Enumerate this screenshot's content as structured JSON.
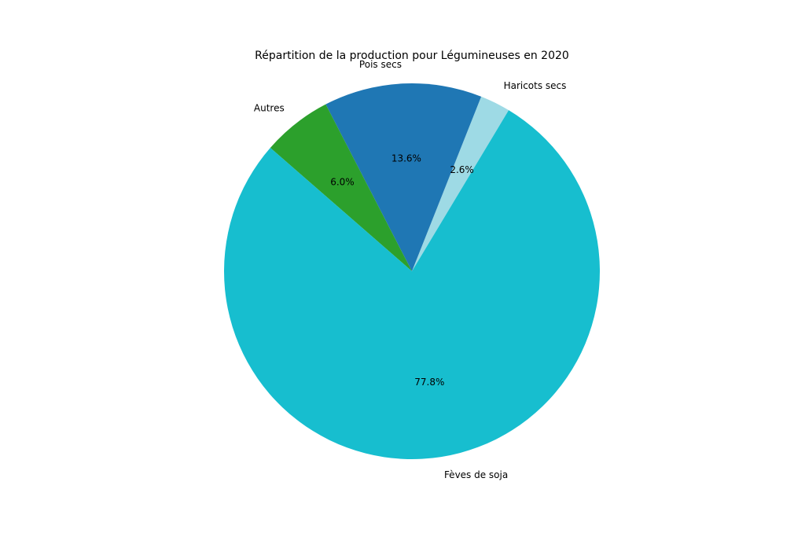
{
  "chart_data": {
    "type": "pie",
    "title": "Répartition de la production pour Légumineuses en 2020",
    "slices": [
      {
        "label": "Haricots secs",
        "value": 2.6,
        "pct_label": "2.6%",
        "color": "#9edae5"
      },
      {
        "label": "Pois secs",
        "value": 13.6,
        "pct_label": "13.6%",
        "color": "#1f77b4"
      },
      {
        "label": "Autres",
        "value": 6.0,
        "pct_label": "6.0%",
        "color": "#2ca02c"
      },
      {
        "label": "Fèves de soja",
        "value": 77.8,
        "pct_label": "77.8%",
        "color": "#17becf"
      }
    ],
    "start_angle_deg": 59,
    "direction": "counterclockwise"
  }
}
